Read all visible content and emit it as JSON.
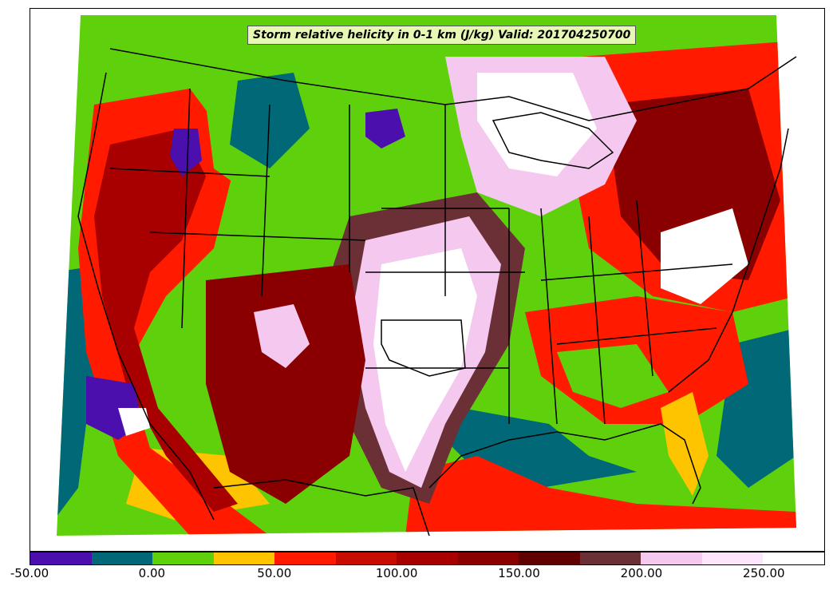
{
  "title": "Storm relative helicity in 0-1 km (J/kg) Valid: 201704250700",
  "colorbar": {
    "ticks": [
      "-50.00",
      "0.00",
      "50.00",
      "100.00",
      "150.00",
      "200.00",
      "250.00"
    ],
    "levels": [
      {
        "name": "below -25",
        "color": "#4b0fad"
      },
      {
        "name": "-25 to 0",
        "color": "#006877"
      },
      {
        "name": "0 to 25",
        "color": "#5fd10c"
      },
      {
        "name": "25 to 50",
        "color": "#ffc400"
      },
      {
        "name": "50 to 75",
        "color": "#ff1a00"
      },
      {
        "name": "75 to 100",
        "color": "#c80c00"
      },
      {
        "name": "100 to 125",
        "color": "#a80000"
      },
      {
        "name": "125 to 150",
        "color": "#8a0000"
      },
      {
        "name": "150 to 175",
        "color": "#600000"
      },
      {
        "name": "175 to 200",
        "color": "#6b3036"
      },
      {
        "name": "200 to 225",
        "color": "#f5c8f0"
      },
      {
        "name": "225 to 250",
        "color": "#fde6fb"
      },
      {
        "name": "above 250",
        "color": "#ffffff"
      }
    ]
  }
}
